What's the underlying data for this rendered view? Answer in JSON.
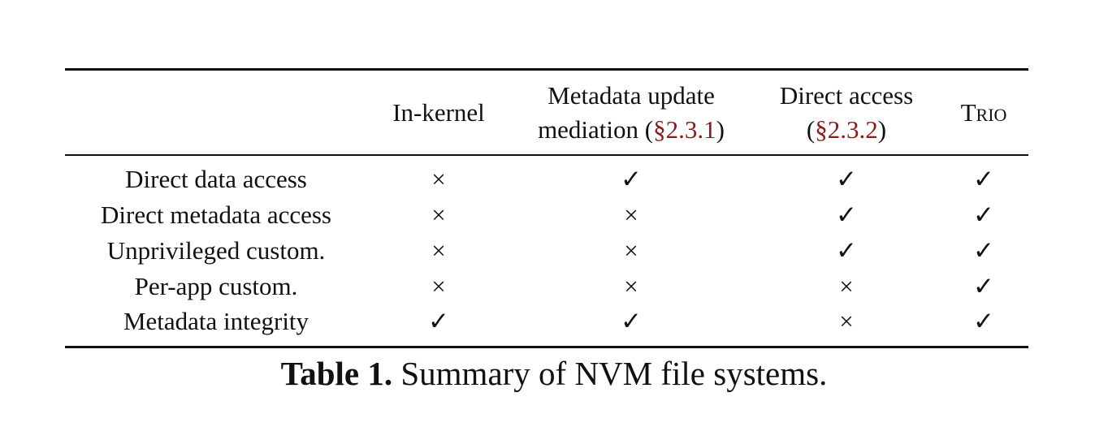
{
  "table": {
    "columns": [
      [
        "In-kernel"
      ],
      [
        "Metadata update mediation (",
        "§2.3.1",
        ")"
      ],
      [
        "Direct access (",
        "§2.3.2",
        ")"
      ],
      [
        "Trio"
      ]
    ],
    "rows": [
      {
        "label": "Direct data access",
        "cells": [
          "×",
          "✓",
          "✓",
          "✓"
        ]
      },
      {
        "label": "Direct metadata access",
        "cells": [
          "×",
          "×",
          "✓",
          "✓"
        ]
      },
      {
        "label": "Unprivileged custom.",
        "cells": [
          "×",
          "×",
          "✓",
          "✓"
        ]
      },
      {
        "label": "Per-app custom.",
        "cells": [
          "×",
          "×",
          "×",
          "✓"
        ]
      },
      {
        "label": "Metadata integrity",
        "cells": [
          "✓",
          "✓",
          "×",
          "✓"
        ]
      }
    ]
  },
  "caption": {
    "label": "Table 1.",
    "text": "Summary of NVM file systems."
  }
}
